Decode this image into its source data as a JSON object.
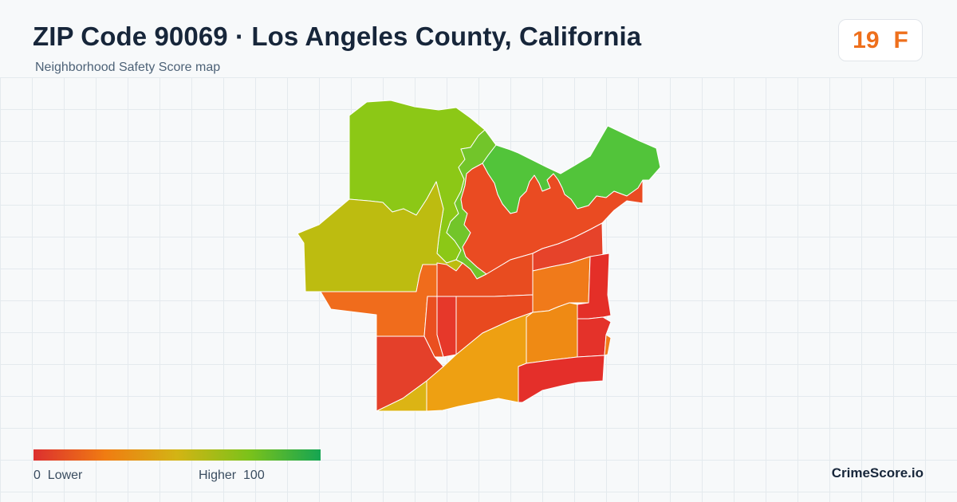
{
  "header": {
    "title": "ZIP Code 90069 · Los Angeles County, California",
    "subtitle": "Neighborhood Safety Score map"
  },
  "score_badge": {
    "score": "19",
    "grade": "F",
    "color": "#ee6f1c"
  },
  "legend": {
    "min_label": "0  Lower",
    "max_label": "Higher  100",
    "gradient_colors": [
      "#dc2f2f",
      "#f07c12",
      "#d3b414",
      "#7cc21a",
      "#15a552"
    ]
  },
  "brand": "CrimeScore.io"
}
